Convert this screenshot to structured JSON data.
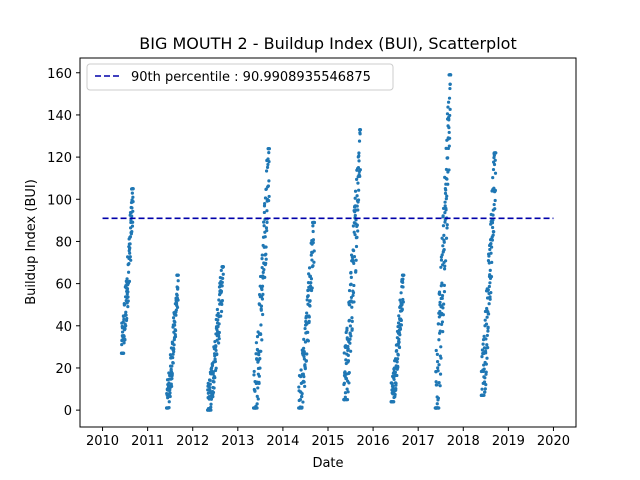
{
  "chart_data": {
    "type": "scatter",
    "title": "BIG MOUTH 2 - Buildup Index (BUI), Scatterplot",
    "xlabel": "Date",
    "ylabel": "Buildup Index (BUI)",
    "xlim": [
      2009.5,
      2020.5
    ],
    "ylim": [
      -8,
      167
    ],
    "xticks": [
      2010,
      2011,
      2012,
      2013,
      2014,
      2015,
      2016,
      2017,
      2018,
      2019,
      2020
    ],
    "yticks": [
      0,
      20,
      40,
      60,
      80,
      100,
      120,
      140,
      160
    ],
    "point_color": "#1f77b4",
    "reference_line": {
      "label": "90th percentile : 90.9908935546875",
      "value": 90.9908935546875,
      "x_range": [
        2010,
        2020
      ],
      "color": "#0000aa",
      "style": "dashed"
    },
    "legend_position": "upper-left",
    "seasons": [
      {
        "year": 2010,
        "start": 2010.42,
        "end": 2010.68,
        "min": 27,
        "max": 105,
        "count": 110
      },
      {
        "year": 2011,
        "start": 2011.42,
        "end": 2011.68,
        "min": 1,
        "max": 64,
        "count": 110
      },
      {
        "year": 2012,
        "start": 2012.33,
        "end": 2012.68,
        "min": 0,
        "max": 68,
        "count": 130
      },
      {
        "year": 2013,
        "start": 2013.35,
        "end": 2013.7,
        "min": 1,
        "max": 124,
        "count": 130
      },
      {
        "year": 2014,
        "start": 2014.35,
        "end": 2014.7,
        "min": 1,
        "max": 89,
        "count": 120
      },
      {
        "year": 2015,
        "start": 2015.35,
        "end": 2015.72,
        "min": 5,
        "max": 133,
        "count": 140
      },
      {
        "year": 2016,
        "start": 2016.4,
        "end": 2016.68,
        "min": 4,
        "max": 64,
        "count": 120
      },
      {
        "year": 2017,
        "start": 2017.38,
        "end": 2017.72,
        "min": 1,
        "max": 159,
        "count": 150
      },
      {
        "year": 2018,
        "start": 2018.4,
        "end": 2018.72,
        "min": 7,
        "max": 122,
        "count": 130
      }
    ]
  }
}
